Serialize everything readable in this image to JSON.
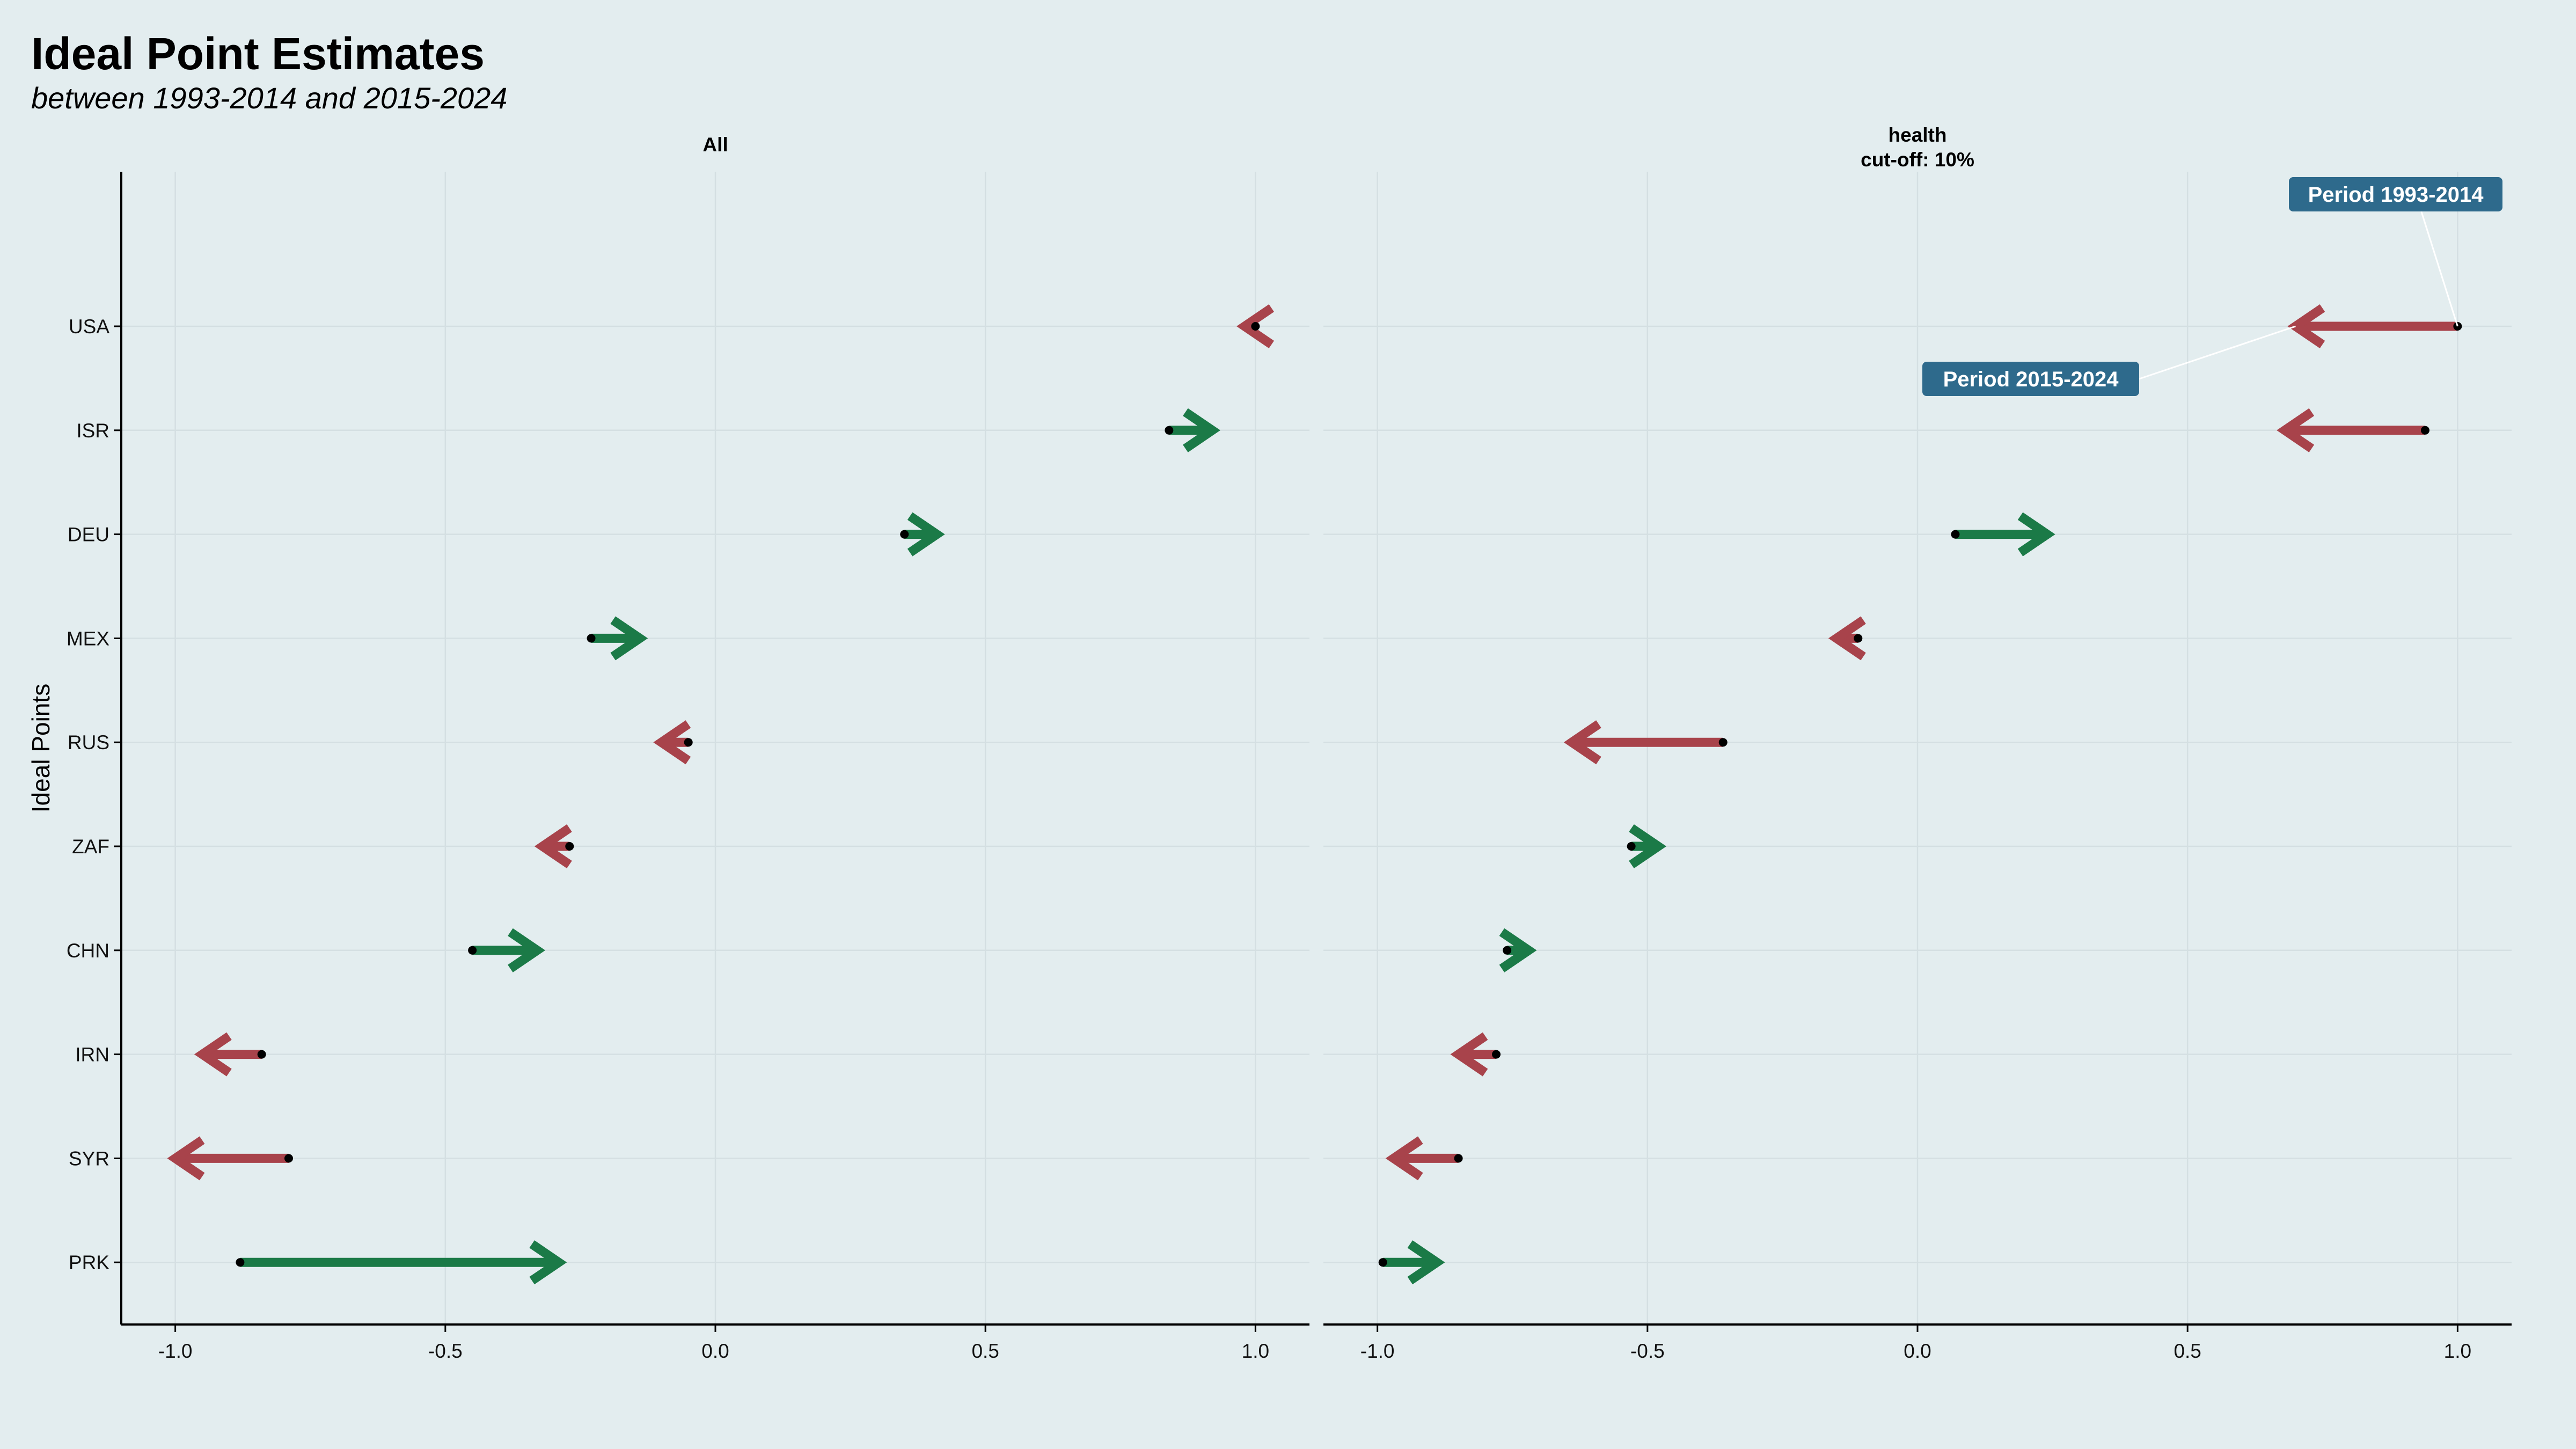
{
  "title": "Ideal Point Estimates",
  "subtitle": "between 1993-2014 and 2015-2024",
  "colors": {
    "background": "#e3edef",
    "increase": "#1b7a47",
    "decrease": "#a8434b",
    "annotation": "#2e6a8c"
  },
  "chart_data": {
    "type": "arrow-dot",
    "ylabel": "Ideal Points",
    "countries": [
      "USA",
      "ISR",
      "DEU",
      "MEX",
      "RUS",
      "ZAF",
      "CHN",
      "IRN",
      "SYR",
      "PRK"
    ],
    "xlim": [
      -1.1,
      1.1
    ],
    "xticks": [
      -1.0,
      -0.5,
      0.0,
      0.5,
      1.0
    ],
    "xtick_labels": [
      "-1.0",
      "-0.5",
      "0.0",
      "0.5",
      "1.0"
    ],
    "grid": true,
    "panels": [
      {
        "name": "All",
        "label_lines": [
          "All"
        ],
        "series": [
          {
            "country": "USA",
            "from": 1.0,
            "to": 0.98
          },
          {
            "country": "ISR",
            "from": 0.84,
            "to": 0.92
          },
          {
            "country": "DEU",
            "from": 0.35,
            "to": 0.41
          },
          {
            "country": "MEX",
            "from": -0.23,
            "to": -0.14
          },
          {
            "country": "RUS",
            "from": -0.05,
            "to": -0.1
          },
          {
            "country": "ZAF",
            "from": -0.27,
            "to": -0.32
          },
          {
            "country": "CHN",
            "from": -0.45,
            "to": -0.33
          },
          {
            "country": "IRN",
            "from": -0.84,
            "to": -0.95
          },
          {
            "country": "SYR",
            "from": -0.79,
            "to": -1.0
          },
          {
            "country": "PRK",
            "from": -0.88,
            "to": -0.29
          }
        ]
      },
      {
        "name": "health",
        "label_lines": [
          "health",
          "cut-off: 10%"
        ],
        "series": [
          {
            "country": "USA",
            "from": 1.0,
            "to": 0.7
          },
          {
            "country": "ISR",
            "from": 0.94,
            "to": 0.68
          },
          {
            "country": "DEU",
            "from": 0.07,
            "to": 0.24
          },
          {
            "country": "MEX",
            "from": -0.11,
            "to": -0.15
          },
          {
            "country": "RUS",
            "from": -0.36,
            "to": -0.64
          },
          {
            "country": "ZAF",
            "from": -0.53,
            "to": -0.48
          },
          {
            "country": "CHN",
            "from": -0.76,
            "to": -0.72
          },
          {
            "country": "IRN",
            "from": -0.78,
            "to": -0.85
          },
          {
            "country": "SYR",
            "from": -0.85,
            "to": -0.97
          },
          {
            "country": "PRK",
            "from": -0.99,
            "to": -0.89
          }
        ]
      }
    ],
    "annotations": [
      {
        "text": "Period 1993-2014",
        "points_to": "from",
        "country": "USA",
        "panel": "health"
      },
      {
        "text": "Period 2015-2024",
        "points_to": "to",
        "country": "USA",
        "panel": "health"
      }
    ]
  }
}
